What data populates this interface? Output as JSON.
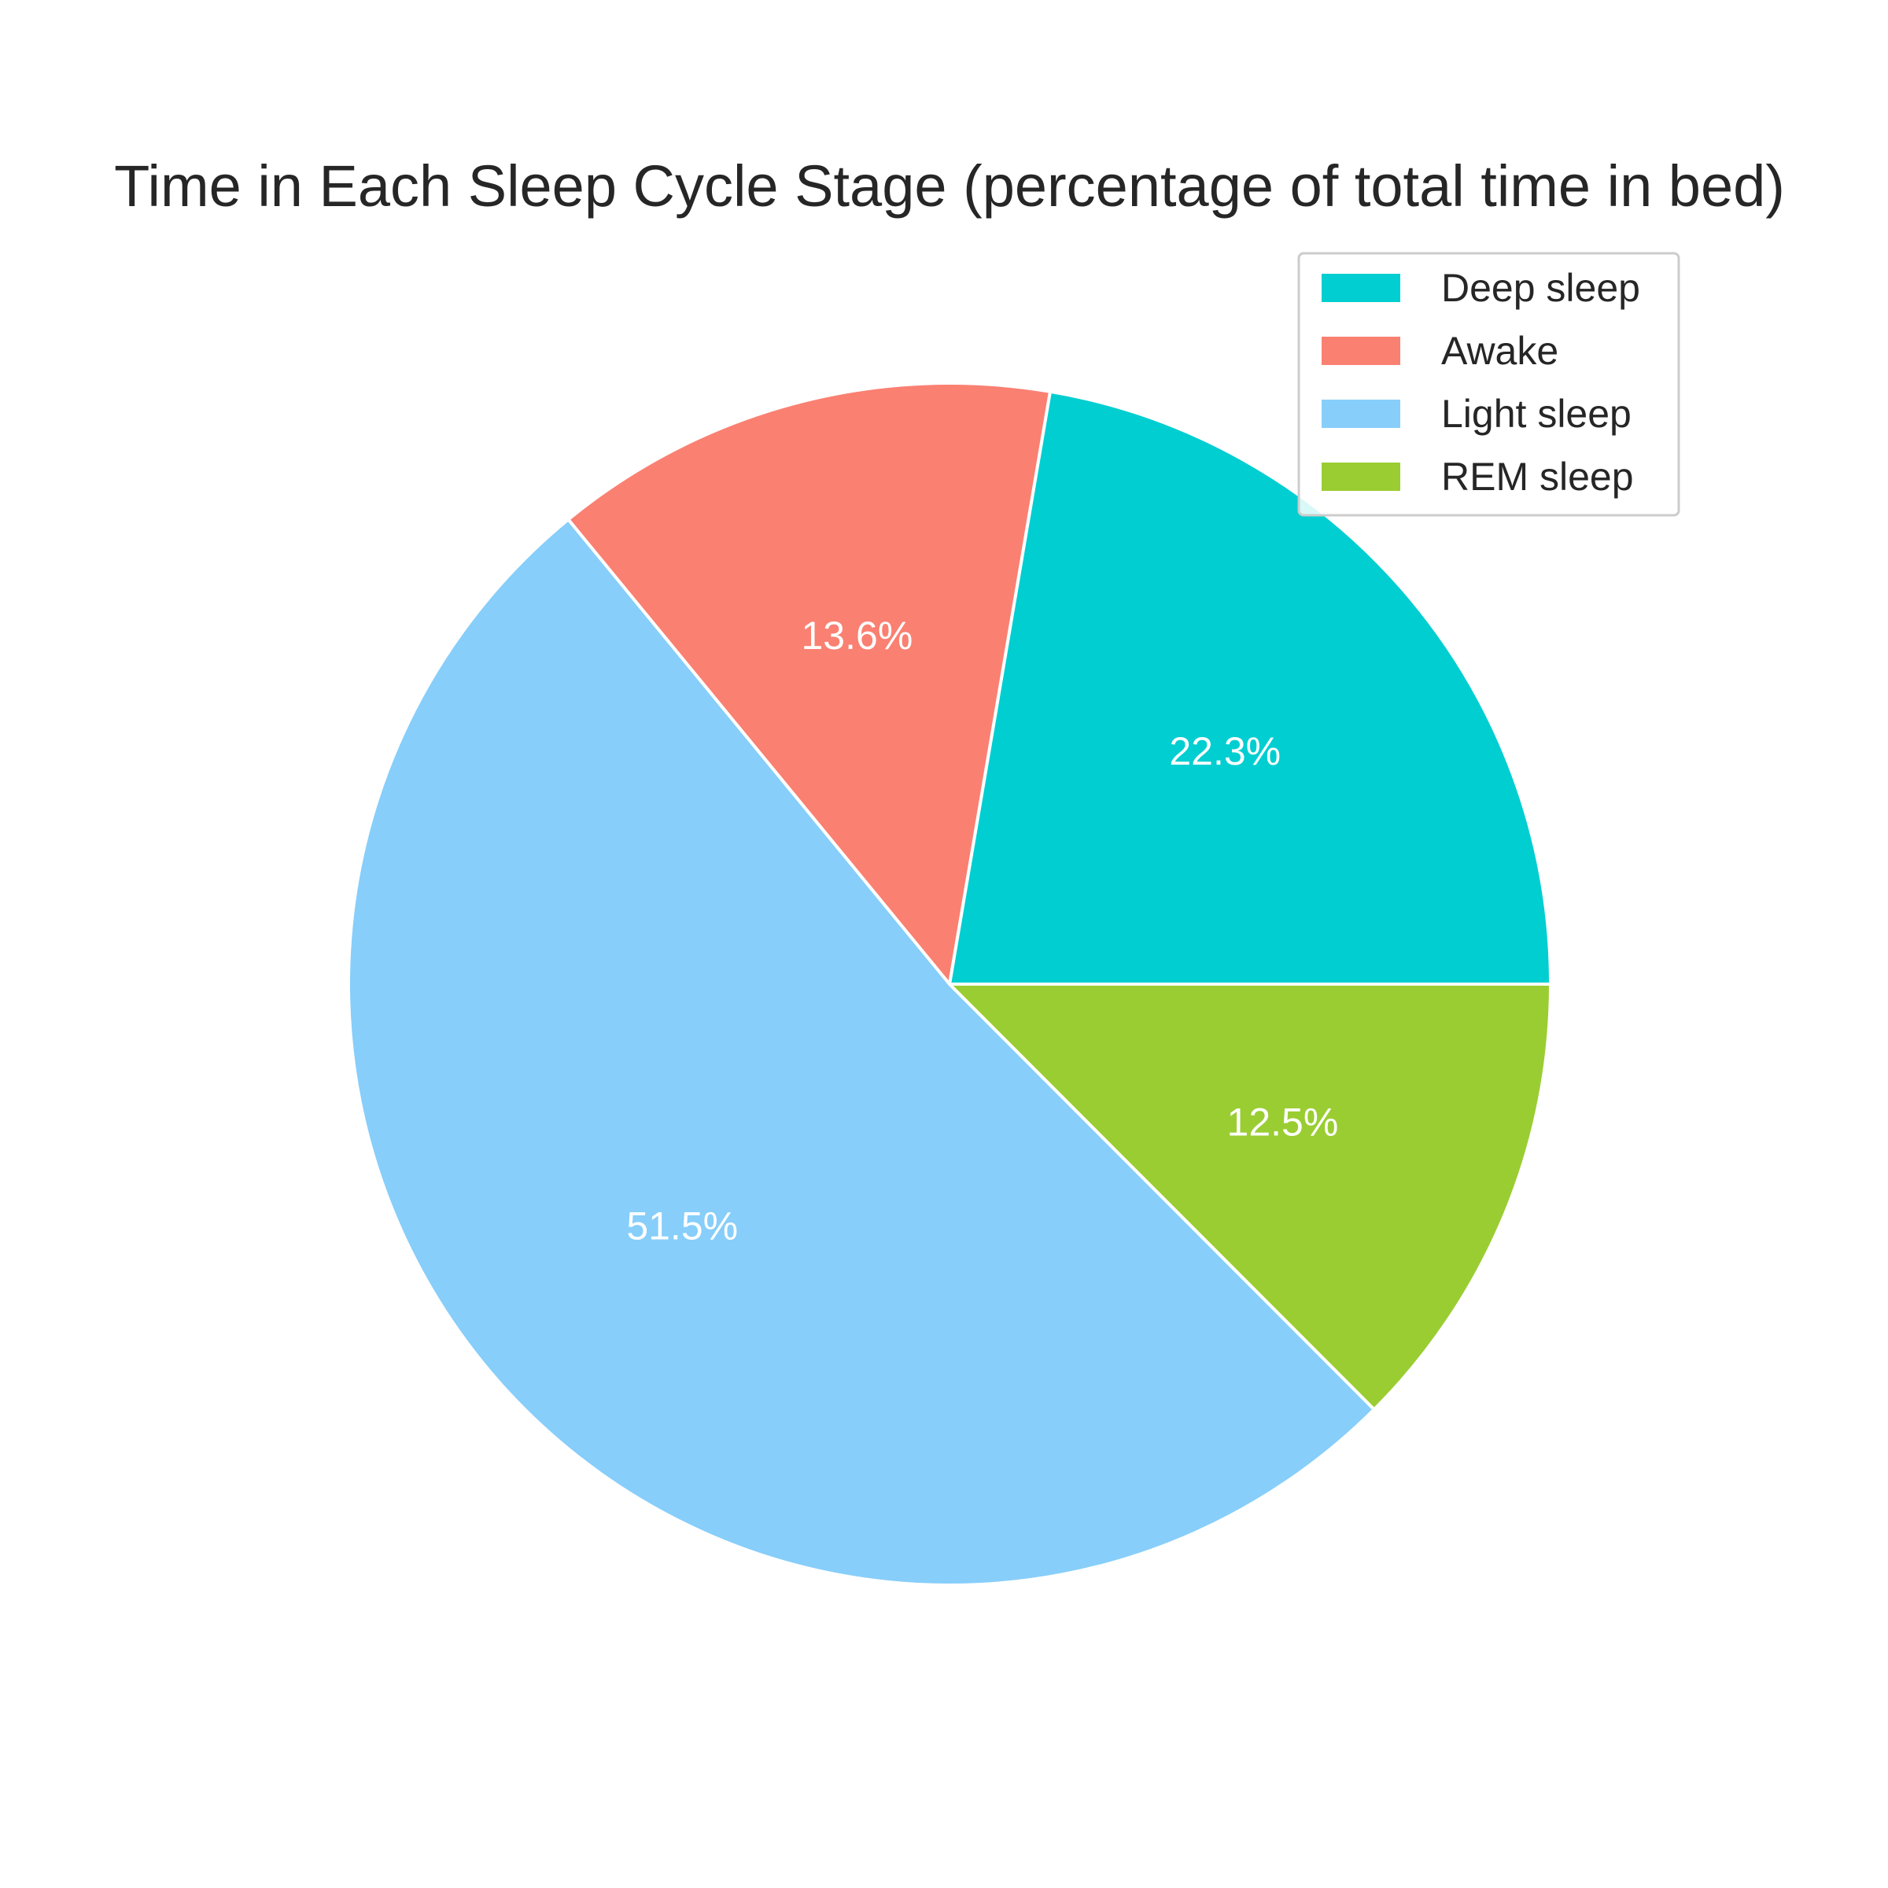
{
  "chart_data": {
    "type": "pie",
    "title": "Time in Each Sleep Cycle Stage (percentage of total time in bed)",
    "slices": [
      {
        "label": "Deep sleep",
        "value": 22.3,
        "display": "22.3%",
        "color": "#00CED1"
      },
      {
        "label": "Awake",
        "value": 13.6,
        "display": "13.6%",
        "color": "#FA8072"
      },
      {
        "label": "Light sleep",
        "value": 51.5,
        "display": "51.5%",
        "color": "#87CEFA"
      },
      {
        "label": "REM sleep",
        "value": 12.5,
        "display": "12.5%",
        "color": "#9ACD32"
      }
    ],
    "start_angle_deg": 0,
    "direction": "counterclockwise",
    "slice_edge_color": "#ffffff",
    "legend": {
      "position": "top-right"
    }
  }
}
